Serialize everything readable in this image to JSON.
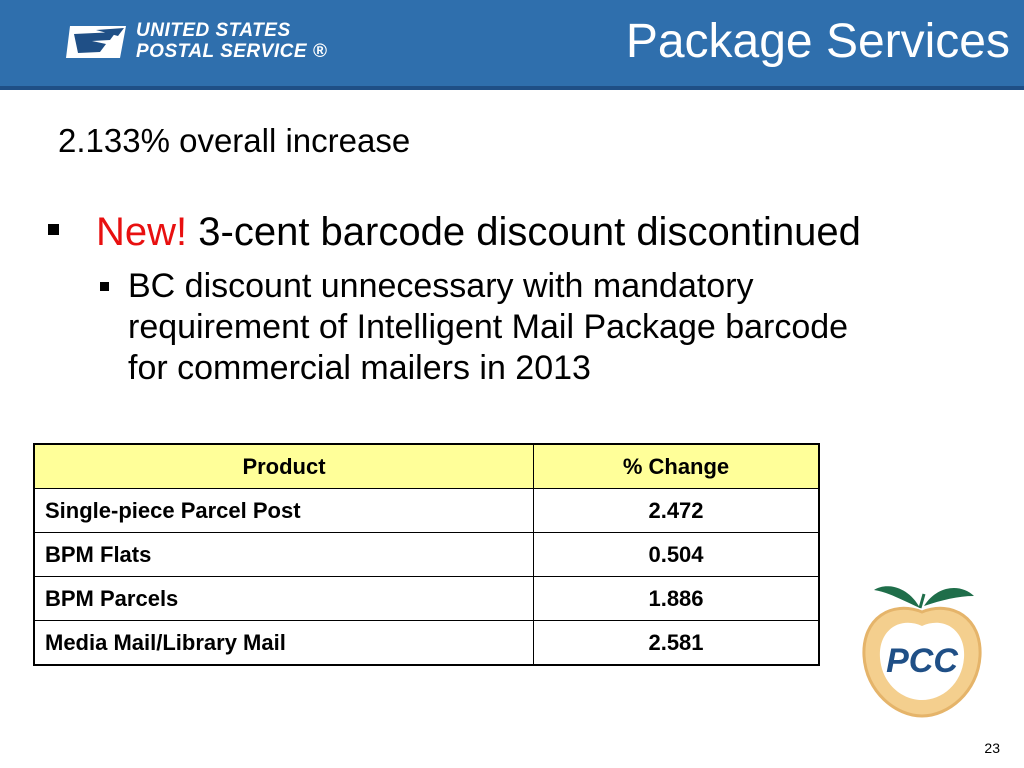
{
  "header": {
    "logo_line1": "UNITED STATES",
    "logo_line2": "POSTAL SERVICE ®",
    "title": "Package Services"
  },
  "subtitle": "2.133% overall increase",
  "bullet1": {
    "new_label": "New!",
    "text": "3-cent barcode discount discontinued"
  },
  "bullet2": {
    "text": "BC discount unnecessary with mandatory requirement of Intelligent Mail Package barcode for commercial mailers in 2013"
  },
  "table": {
    "headers": [
      "Product",
      "% Change"
    ],
    "rows": [
      {
        "product": "Single-piece Parcel Post",
        "change": "2.472"
      },
      {
        "product": "BPM Flats",
        "change": "0.504"
      },
      {
        "product": "BPM Parcels",
        "change": "1.886"
      },
      {
        "product": "Media Mail/Library Mail",
        "change": "2.581"
      }
    ]
  },
  "pcc_logo": {
    "text": "PCC"
  },
  "page_number": "23",
  "colors": {
    "header_bg": "#2f6fad",
    "new_red": "#e81010",
    "table_header_bg": "#ffff99"
  }
}
